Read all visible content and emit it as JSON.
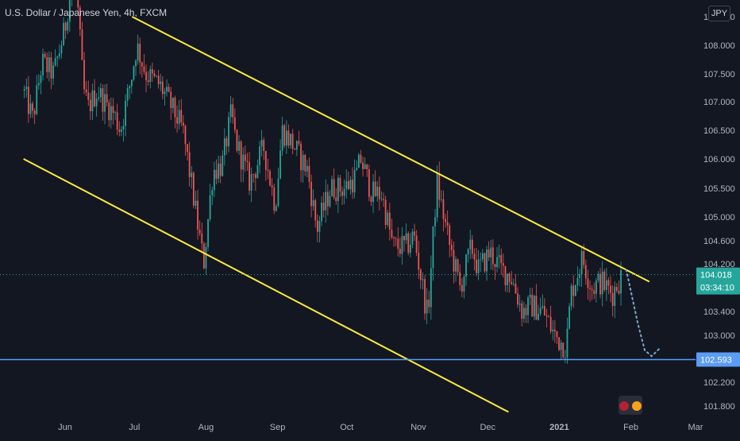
{
  "header": {
    "title": "U.S. Dollar / Japanese Yen, 4h, FXCM",
    "currency": "JPY"
  },
  "colors": {
    "background": "#131722",
    "up": "#26a69a",
    "down": "#ef5350",
    "trendline": "#ffeb3b",
    "support": "#5b9cf6",
    "last_price": "#26a69a",
    "axis_text": "#b2b5be",
    "projection": "#7fa8c9"
  },
  "chart_data": {
    "type": "candlestick",
    "symbol": "USDJPY",
    "interval": "4h",
    "ylim": [
      101.6,
      109.0
    ],
    "y_ticks": [
      "101.800",
      "102.200",
      "102.600",
      "103.000",
      "103.400",
      "103.800",
      "104.200",
      "104.600",
      "105.000",
      "105.500",
      "106.000",
      "106.500",
      "107.000",
      "107.500",
      "108.000",
      "108.500"
    ],
    "x_ticks": [
      "Jun",
      "Jul",
      "Aug",
      "Sep",
      "Oct",
      "Nov",
      "Dec",
      "2021",
      "Feb",
      "Mar"
    ],
    "last_price": "104.018",
    "countdown": "03:34:10",
    "support_level": "102.593",
    "price_path": [
      [
        "2020-05-14",
        107.2
      ],
      [
        "2020-05-18",
        106.7
      ],
      [
        "2020-05-22",
        107.7
      ],
      [
        "2020-05-27",
        107.5
      ],
      [
        "2020-06-01",
        108.3
      ],
      [
        "2020-06-05",
        109.5
      ],
      [
        "2020-06-09",
        107.2
      ],
      [
        "2020-06-11",
        106.9
      ],
      [
        "2020-06-15",
        107.2
      ],
      [
        "2020-06-18",
        107.0
      ],
      [
        "2020-06-22",
        106.8
      ],
      [
        "2020-06-25",
        106.5
      ],
      [
        "2020-06-30",
        107.5
      ],
      [
        "2020-07-02",
        108.0
      ],
      [
        "2020-07-06",
        107.5
      ],
      [
        "2020-07-12",
        107.3
      ],
      [
        "2020-07-16",
        107.0
      ],
      [
        "2020-07-22",
        106.5
      ],
      [
        "2020-07-26",
        105.5
      ],
      [
        "2020-07-31",
        104.2
      ],
      [
        "2020-08-04",
        105.8
      ],
      [
        "2020-08-08",
        105.9
      ],
      [
        "2020-08-12",
        106.8
      ],
      [
        "2020-08-14",
        106.3
      ],
      [
        "2020-08-20",
        105.6
      ],
      [
        "2020-08-26",
        106.2
      ],
      [
        "2020-08-31",
        105.2
      ],
      [
        "2020-09-03",
        106.5
      ],
      [
        "2020-09-07",
        106.3
      ],
      [
        "2020-09-14",
        105.8
      ],
      [
        "2020-09-18",
        104.8
      ],
      [
        "2020-09-24",
        105.5
      ],
      [
        "2020-09-30",
        105.5
      ],
      [
        "2020-10-05",
        105.7
      ],
      [
        "2020-10-07",
        106.0
      ],
      [
        "2020-10-12",
        105.4
      ],
      [
        "2020-10-16",
        105.4
      ],
      [
        "2020-10-21",
        104.5
      ],
      [
        "2020-10-27",
        104.5
      ],
      [
        "2020-10-30",
        104.7
      ],
      [
        "2020-11-05",
        103.3
      ],
      [
        "2020-11-09",
        105.6
      ],
      [
        "2020-11-14",
        104.6
      ],
      [
        "2020-11-19",
        103.8
      ],
      [
        "2020-11-24",
        104.5
      ],
      [
        "2020-11-27",
        104.1
      ],
      [
        "2020-12-02",
        104.4
      ],
      [
        "2020-12-07",
        104.1
      ],
      [
        "2020-12-11",
        104.0
      ],
      [
        "2020-12-16",
        103.4
      ],
      [
        "2020-12-20",
        103.5
      ],
      [
        "2020-12-25",
        103.4
      ],
      [
        "2020-12-30",
        103.0
      ],
      [
        "2021-01-04",
        102.8
      ],
      [
        "2021-01-06",
        103.7
      ],
      [
        "2021-01-11",
        104.3
      ],
      [
        "2021-01-15",
        103.8
      ],
      [
        "2021-01-19",
        103.9
      ],
      [
        "2021-01-24",
        103.7
      ],
      [
        "2021-01-28",
        104.0
      ]
    ],
    "upper_trendline": [
      [
        "2020-06-30",
        108.5
      ],
      [
        "2021-02-09",
        103.9
      ]
    ],
    "lower_trendline": [
      [
        "2020-05-14",
        106.0
      ],
      [
        "2020-12-10",
        101.7
      ]
    ],
    "projection_path": [
      [
        "2021-01-30",
        104.1
      ],
      [
        "2021-02-04",
        103.2
      ],
      [
        "2021-02-07",
        102.75
      ],
      [
        "2021-02-10",
        102.65
      ],
      [
        "2021-02-14",
        102.8
      ]
    ]
  }
}
